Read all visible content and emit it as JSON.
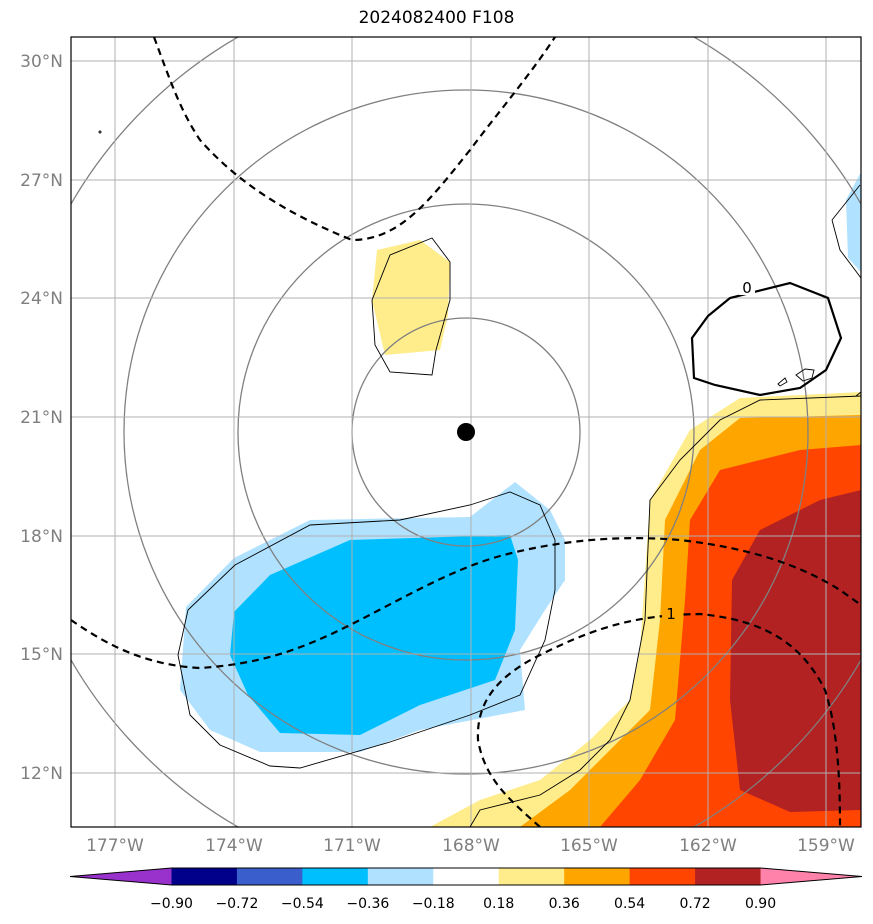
{
  "title": "2024082400 F108",
  "map": {
    "lon_ticks": [
      "177°W",
      "174°W",
      "171°W",
      "168°W",
      "165°W",
      "162°W",
      "159°W"
    ],
    "lat_ticks": [
      "30°N",
      "27°N",
      "24°N",
      "21°N",
      "18°N",
      "15°N",
      "12°N"
    ],
    "lon_range": [
      -178.1,
      -158.2
    ],
    "lat_range": [
      10.6,
      30.5
    ],
    "grid": true,
    "center_marker": {
      "lon": -168.0,
      "lat": 20.6
    },
    "contour_labels": [
      "1",
      "0"
    ]
  },
  "colorbar": {
    "levels": [
      "−0.90",
      "−0.72",
      "−0.54",
      "−0.36",
      "−0.18",
      "0.18",
      "0.36",
      "0.54",
      "0.72",
      "0.90"
    ],
    "colors": [
      "#9932cc",
      "#00008b",
      "#3a5fcd",
      "#00bfff",
      "#b0e2ff",
      "#ffffff",
      "#ffec8b",
      "#ffa500",
      "#ff4500",
      "#b22222",
      "#ff82ab"
    ],
    "extend": "both"
  }
}
